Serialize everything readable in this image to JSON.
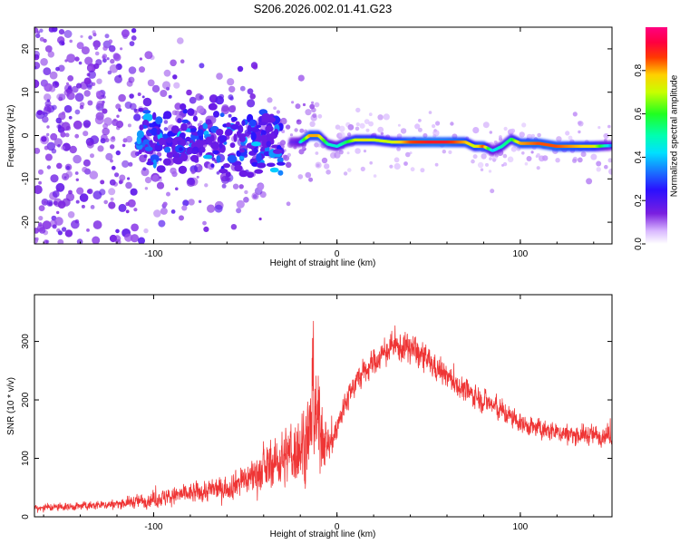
{
  "title": "S206.2026.002.01.41.G23",
  "chart_data": [
    {
      "type": "heatmap",
      "name": "spectrogram",
      "xlabel": "Height of straight line (km)",
      "ylabel": "Frequency (Hz)",
      "xlim": [
        -165,
        150
      ],
      "ylim": [
        -25,
        25
      ],
      "xticks": [
        -100,
        0,
        100
      ],
      "xtick_labels": [
        "-100",
        "0",
        "100"
      ],
      "yticks": [
        -20,
        -10,
        0,
        10,
        20
      ],
      "ytick_labels": [
        "-20",
        "-10",
        "0",
        "10",
        "20"
      ],
      "colorbar": {
        "label": "Normalized spectral amplitude",
        "range": [
          0,
          1
        ],
        "ticks": [
          0.0,
          0.2,
          0.4,
          0.6,
          0.8
        ],
        "tick_labels": [
          "0.0",
          "0.2",
          "0.4",
          "0.6",
          "0.8"
        ]
      },
      "ridge": {
        "x": [
          -105,
          -90,
          -75,
          -60,
          -45,
          -30,
          -20,
          -15,
          -10,
          -5,
          0,
          5,
          10,
          15,
          20,
          30,
          40,
          50,
          60,
          70,
          75,
          80,
          85,
          90,
          95,
          100,
          110,
          120,
          130,
          140,
          150
        ],
        "freq": [
          -1.5,
          -1.8,
          -2.0,
          -2.5,
          -2.0,
          -1.5,
          -1.5,
          0.0,
          0.0,
          -2.0,
          -2.5,
          -1.5,
          -1.0,
          -1.0,
          -1.0,
          -1.5,
          -1.5,
          -1.5,
          -1.5,
          -1.5,
          -2.5,
          -2.5,
          -3.5,
          -2.5,
          -0.8,
          -1.8,
          -1.8,
          -2.5,
          -2.5,
          -2.5,
          -2.3
        ],
        "amplitude": [
          0.3,
          0.3,
          0.3,
          0.25,
          0.3,
          0.3,
          0.4,
          0.8,
          0.8,
          0.5,
          0.45,
          0.55,
          0.7,
          0.75,
          0.7,
          0.7,
          0.85,
          0.9,
          0.9,
          0.8,
          0.7,
          0.85,
          0.4,
          0.5,
          0.55,
          0.8,
          0.85,
          0.85,
          0.8,
          0.75,
          0.35
        ]
      }
    },
    {
      "type": "line",
      "name": "snr",
      "xlabel": "Height of straight line (km)",
      "ylabel": "SNR (10 * v/v)",
      "xlim": [
        -165,
        150
      ],
      "ylim": [
        0,
        380
      ],
      "xticks": [
        -100,
        0,
        100
      ],
      "xtick_labels": [
        "-100",
        "0",
        "100"
      ],
      "yticks": [
        0,
        100,
        200,
        300
      ],
      "ytick_labels": [
        "0",
        "100",
        "200",
        "300"
      ],
      "color": "#ef3535",
      "envelope": {
        "x": [
          -165,
          -140,
          -120,
          -100,
          -80,
          -60,
          -50,
          -40,
          -30,
          -20,
          -15,
          -12,
          -8,
          -5,
          0,
          5,
          10,
          20,
          30,
          40,
          50,
          60,
          70,
          80,
          90,
          100,
          110,
          120,
          130,
          140,
          150
        ],
        "mean": [
          15,
          18,
          22,
          30,
          40,
          50,
          65,
          80,
          100,
          120,
          140,
          170,
          140,
          120,
          150,
          200,
          230,
          265,
          290,
          290,
          265,
          240,
          215,
          200,
          180,
          160,
          150,
          145,
          140,
          140,
          140
        ],
        "spread": [
          10,
          10,
          12,
          20,
          25,
          30,
          40,
          55,
          65,
          90,
          110,
          120,
          80,
          50,
          40,
          35,
          35,
          35,
          35,
          40,
          35,
          30,
          30,
          30,
          30,
          25,
          25,
          25,
          25,
          25,
          25
        ]
      }
    }
  ]
}
